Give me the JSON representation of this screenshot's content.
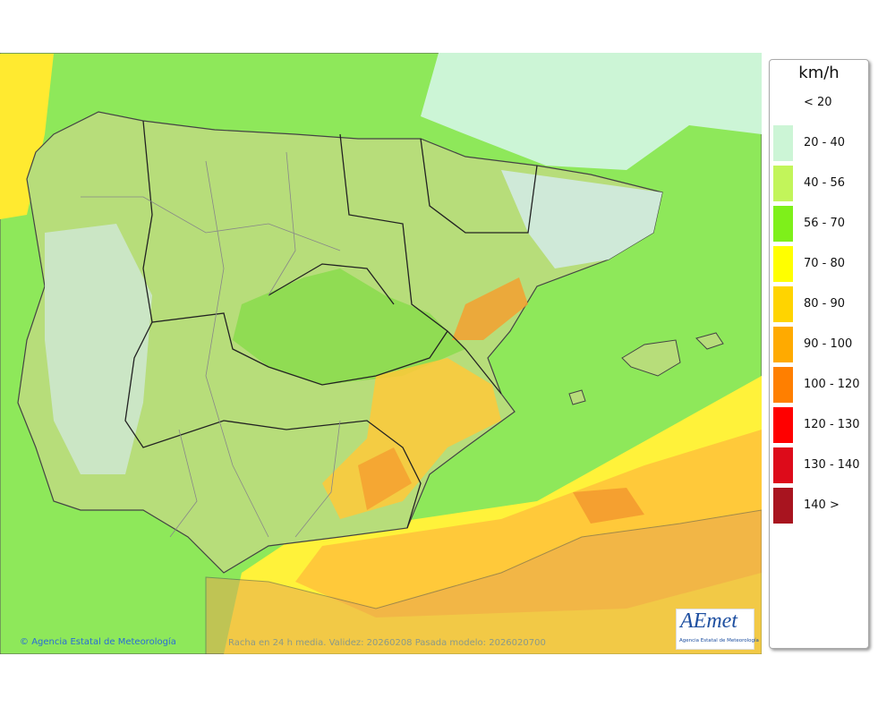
{
  "legend": {
    "title": "km/h",
    "items": [
      {
        "label": "< 20"
      },
      {
        "label": "20 - 40",
        "color": "#ccf5d6"
      },
      {
        "label": "40 - 56",
        "color": "#c2f55a"
      },
      {
        "label": "56 - 70",
        "color": "#7ef01a"
      },
      {
        "label": "70 - 80",
        "color": "#ffff00"
      },
      {
        "label": "80 - 90",
        "color": "#ffd400"
      },
      {
        "label": "90 - 100",
        "color": "#ffaa00"
      },
      {
        "label": "100 - 120",
        "color": "#ff7f00"
      },
      {
        "label": "120 - 130",
        "color": "#ff0000"
      },
      {
        "label": "130 - 140",
        "color": "#dd0b1a"
      },
      {
        "label": "140 >",
        "color": "#a8141f"
      }
    ]
  },
  "footer": {
    "credit": "Agencia Estatal de Meteorología",
    "caption": "Racha en 24 h media. Validez: 20260208 Pasada modelo: 2026020700"
  },
  "logo": {
    "mark": "AEmet",
    "subtitle": "Agencia Estatal de Meteorología"
  }
}
